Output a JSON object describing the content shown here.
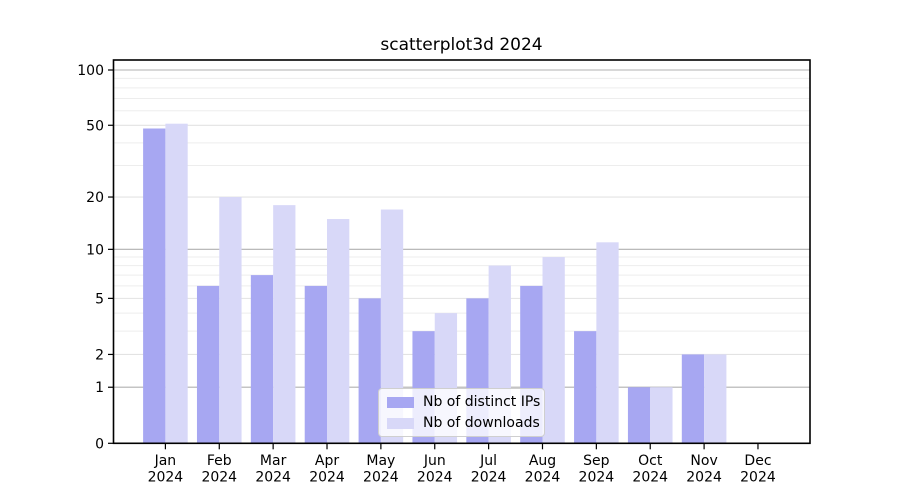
{
  "figure": {
    "background": "#ffffff"
  },
  "chart_data": {
    "type": "bar",
    "title": "scatterplot3d 2024",
    "x": {
      "months": [
        "Jan",
        "Feb",
        "Mar",
        "Apr",
        "May",
        "Jun",
        "Jul",
        "Aug",
        "Sep",
        "Oct",
        "Nov",
        "Dec"
      ],
      "year": "2024"
    },
    "series": [
      {
        "name": "Nb of distinct IPs",
        "color": "#a7a7f2",
        "values": [
          48,
          6,
          7,
          6,
          5,
          3,
          5,
          6,
          3,
          1,
          2,
          0
        ]
      },
      {
        "name": "Nb of downloads",
        "color": "#d8d8f8",
        "values": [
          51,
          20,
          18,
          15,
          17,
          4,
          8,
          9,
          11,
          1,
          2,
          0
        ]
      }
    ],
    "yscale": "log1p",
    "ylim": [
      0,
      113
    ],
    "yticks": [
      0,
      1,
      2,
      5,
      10,
      20,
      50,
      100
    ],
    "minor_yticks": [
      3,
      4,
      6,
      7,
      8,
      9,
      30,
      40,
      60,
      70,
      80,
      90
    ],
    "grid": true,
    "legend_position": "lower-center",
    "colors": {
      "decade_grid": "#b0b0b0",
      "grid": "#e3e3e3",
      "minor_grid": "#ededed",
      "axis": "#000000",
      "text": "#000000"
    }
  }
}
